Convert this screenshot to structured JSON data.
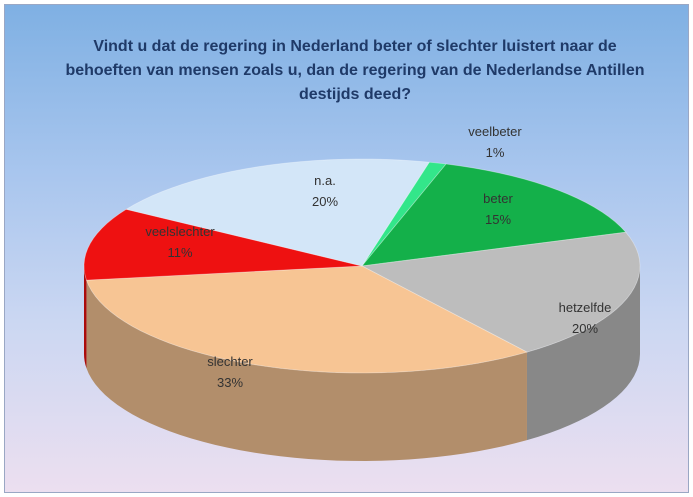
{
  "chart_data": {
    "type": "pie",
    "title": "Vindt u dat de regering in Nederland beter of slechter luistert naar de behoeften van mensen zoals u, dan de regering van de Nederlandse Antillen destijds deed?",
    "slices": [
      {
        "label": "veelbeter",
        "value": 1,
        "display": "1%",
        "color": "#33e68a"
      },
      {
        "label": "beter",
        "value": 15,
        "display": "15%",
        "color": "#14b04a"
      },
      {
        "label": "hetzelfde",
        "value": 20,
        "display": "20%",
        "color": "#bdbdbd"
      },
      {
        "label": "slechter",
        "value": 33,
        "display": "33%",
        "color": "#f7c594"
      },
      {
        "label": "veelslechter",
        "value": 11,
        "display": "11%",
        "color": "#ee1111"
      },
      {
        "label": "n.a.",
        "value": 20,
        "display": "20%",
        "color": "#d3e6f8"
      }
    ]
  }
}
